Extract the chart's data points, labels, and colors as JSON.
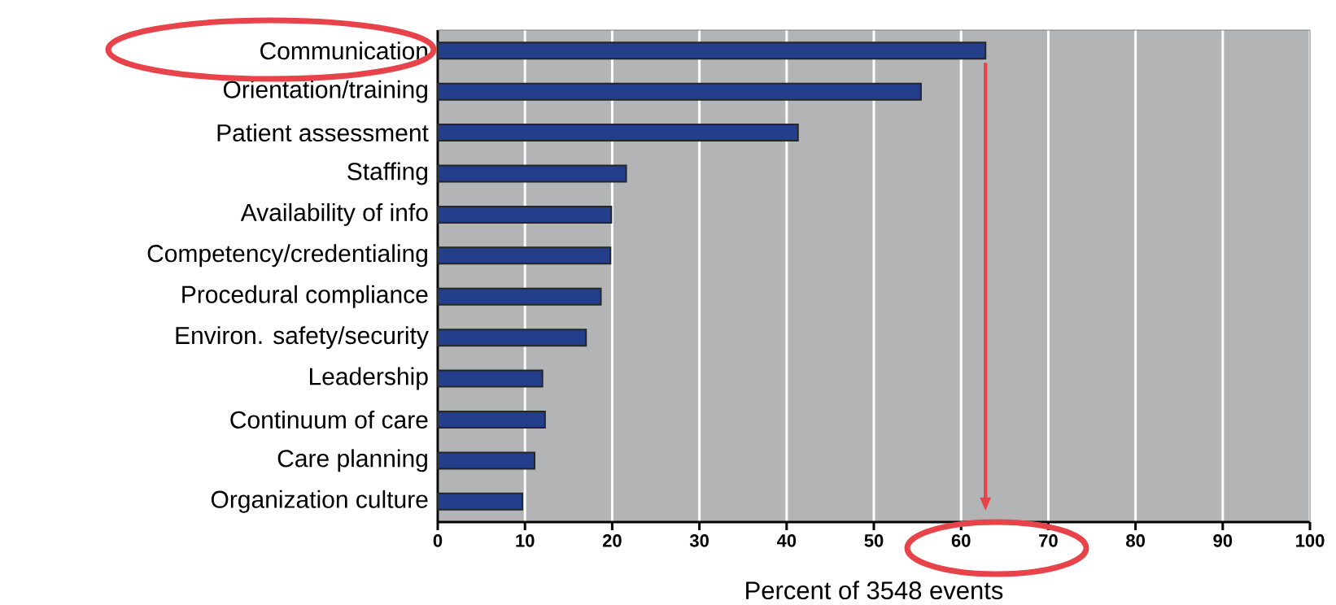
{
  "chart_data": {
    "type": "bar",
    "orientation": "horizontal",
    "categories": [
      "Communication",
      "Orientation/training",
      "Patient assessment",
      "Staffing",
      "Availability of info",
      "Competency/credentialing",
      "Procedural compliance",
      "Environ. safety/security",
      "Leadership",
      "Continuum of care",
      "Care planning",
      "Organization culture"
    ],
    "values": [
      62.8,
      55.4,
      41.3,
      21.6,
      19.9,
      19.8,
      18.7,
      17.0,
      12.0,
      12.3,
      11.1,
      9.7
    ],
    "color": "#233f8b",
    "xlabel": "Percent of 3548 events",
    "xlim": [
      0,
      100
    ],
    "xticks": [
      0,
      10,
      20,
      30,
      40,
      50,
      60,
      70,
      80,
      90,
      100
    ],
    "grid": "x",
    "ref_lines": [
      {
        "axis": "x",
        "value": 62.8,
        "color": "#e8434a"
      }
    ]
  }
}
